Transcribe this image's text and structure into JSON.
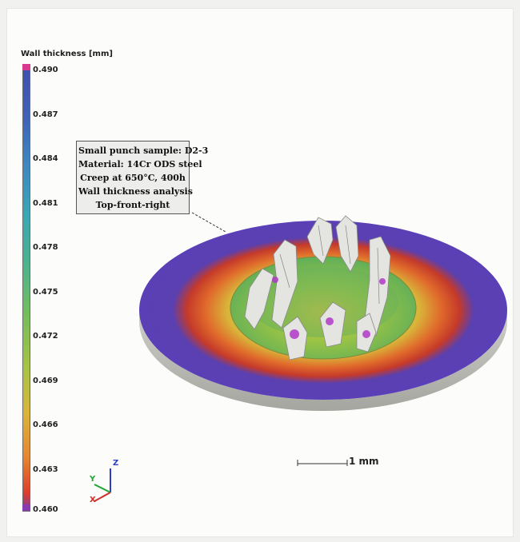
{
  "legend": {
    "title": "Wall thickness [mm]",
    "ticks": [
      "0.490",
      "0.487",
      "0.484",
      "0.481",
      "0.478",
      "0.475",
      "0.472",
      "0.469",
      "0.466",
      "0.463",
      "0.460"
    ]
  },
  "info_box": {
    "lines": [
      "Small punch sample: D2-3",
      "Material: 14Cr ODS steel",
      "Creep at 650°C, 400h",
      "Wall thickness analysis",
      "Top-front-right"
    ]
  },
  "scale_bar": {
    "label": "1 mm"
  },
  "axes_triad": {
    "z_label": "Z",
    "y_label": "Y",
    "x_label": "X"
  },
  "colors": {
    "max": "#d83a8e",
    "high": "#3e4fb0",
    "mid": "#74bd5c",
    "low": "#dd3d2a",
    "min": "#8a3ab0",
    "disc_side": "#b9b9b4",
    "fracture": "#e4e4e0"
  },
  "icons": [
    "coordinate-axes-icon"
  ]
}
